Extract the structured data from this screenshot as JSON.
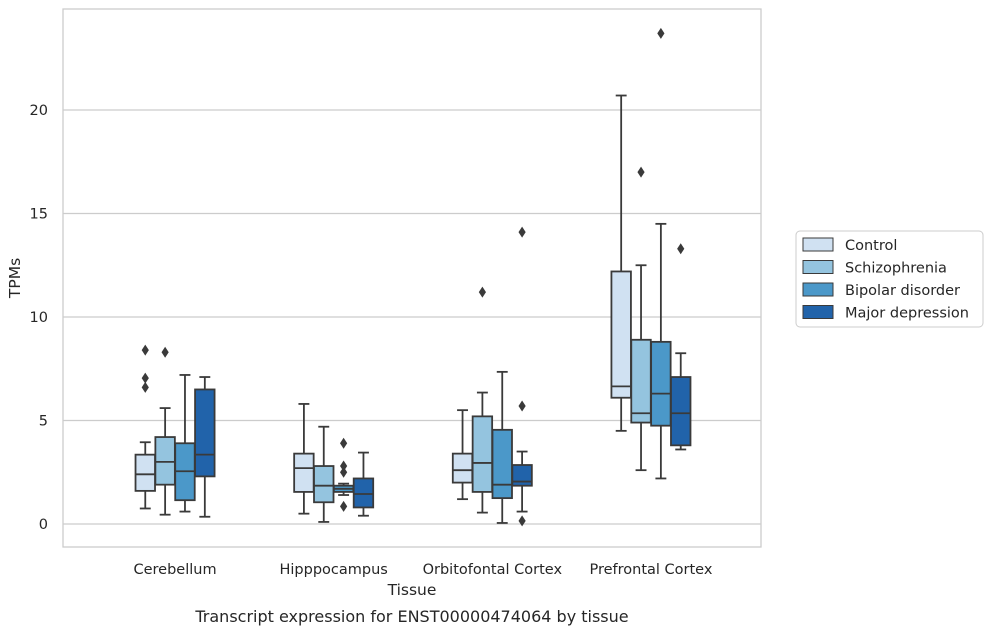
{
  "chart_data": {
    "type": "box",
    "caption": "Transcript expression for ENST00000474064 by tissue",
    "xlabel": "Tissue",
    "ylabel": "TPMs",
    "ylim": [
      -1.1,
      24.6
    ],
    "yticks": [
      0,
      5,
      10,
      15,
      20
    ],
    "grid": "horizontal",
    "legend_position": "right",
    "categories": [
      "Cerebellum",
      "Hipppocampus",
      "Orbitofontal Cortex",
      "Prefrontal Cortex"
    ],
    "series": [
      {
        "name": "Control",
        "color": "#d0e1f2",
        "boxes": [
          {
            "whislo": 0.75,
            "q1": 1.6,
            "med": 2.4,
            "q3": 3.35,
            "whishi": 3.95,
            "fliers": [
              6.6,
              7.05,
              8.4
            ]
          },
          {
            "whislo": 0.5,
            "q1": 1.55,
            "med": 2.7,
            "q3": 3.4,
            "whishi": 5.8,
            "fliers": []
          },
          {
            "whislo": 1.2,
            "q1": 2.0,
            "med": 2.6,
            "q3": 3.4,
            "whishi": 5.5,
            "fliers": []
          },
          {
            "whislo": 4.5,
            "q1": 6.1,
            "med": 6.65,
            "q3": 12.2,
            "whishi": 20.7,
            "fliers": []
          }
        ]
      },
      {
        "name": "Schizophrenia",
        "color": "#94c4df",
        "boxes": [
          {
            "whislo": 0.45,
            "q1": 1.9,
            "med": 3.0,
            "q3": 4.2,
            "whishi": 5.6,
            "fliers": [
              8.3
            ]
          },
          {
            "whislo": 0.1,
            "q1": 1.05,
            "med": 1.85,
            "q3": 2.8,
            "whishi": 4.7,
            "fliers": []
          },
          {
            "whislo": 0.55,
            "q1": 1.55,
            "med": 2.95,
            "q3": 5.2,
            "whishi": 6.35,
            "fliers": [
              11.2
            ]
          },
          {
            "whislo": 2.6,
            "q1": 4.9,
            "med": 5.35,
            "q3": 8.9,
            "whishi": 12.5,
            "fliers": [
              17.0
            ]
          }
        ]
      },
      {
        "name": "Bipolar disorder",
        "color": "#4b98c9",
        "boxes": [
          {
            "whislo": 0.6,
            "q1": 1.15,
            "med": 2.55,
            "q3": 3.9,
            "whishi": 7.2,
            "fliers": []
          },
          {
            "whislo": 1.4,
            "q1": 1.55,
            "med": 1.7,
            "q3": 1.85,
            "whishi": 1.95,
            "fliers": [
              0.85,
              2.5,
              2.8,
              3.9
            ]
          },
          {
            "whislo": 0.05,
            "q1": 1.25,
            "med": 1.9,
            "q3": 4.55,
            "whishi": 7.35,
            "fliers": []
          },
          {
            "whislo": 2.2,
            "q1": 4.75,
            "med": 6.3,
            "q3": 8.8,
            "whishi": 14.5,
            "fliers": [
              23.7
            ]
          }
        ]
      },
      {
        "name": "Major depression",
        "color": "#2163aa",
        "boxes": [
          {
            "whislo": 0.35,
            "q1": 2.3,
            "med": 3.35,
            "q3": 6.5,
            "whishi": 7.1,
            "fliers": []
          },
          {
            "whislo": 0.4,
            "q1": 0.8,
            "med": 1.45,
            "q3": 2.2,
            "whishi": 3.45,
            "fliers": []
          },
          {
            "whislo": 0.6,
            "q1": 1.85,
            "med": 2.05,
            "q3": 2.85,
            "whishi": 3.5,
            "fliers": [
              0.15,
              5.7,
              14.1
            ]
          },
          {
            "whislo": 3.6,
            "q1": 3.8,
            "med": 5.35,
            "q3": 7.1,
            "whishi": 8.25,
            "fliers": [
              13.3
            ]
          }
        ]
      }
    ]
  }
}
